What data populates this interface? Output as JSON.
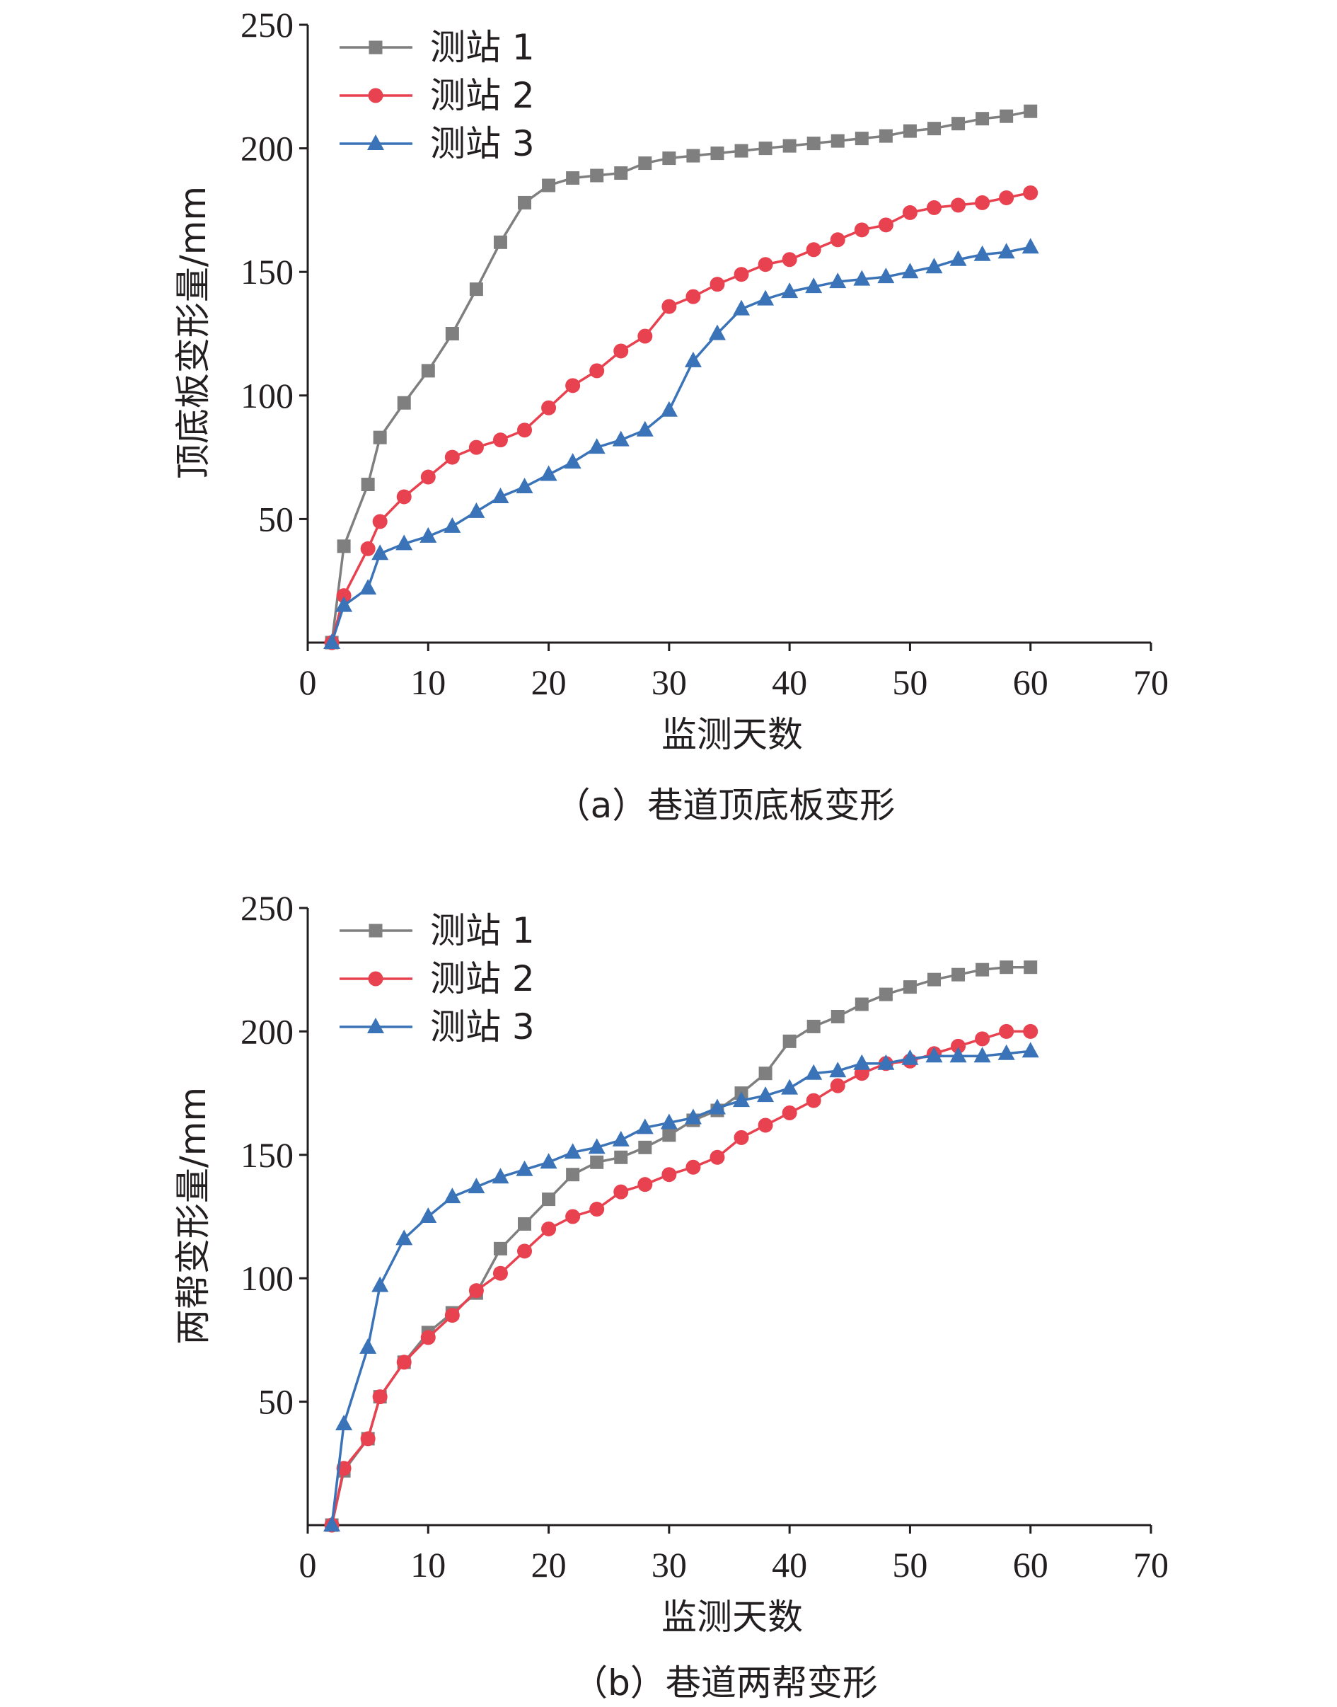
{
  "chart_data": [
    {
      "type": "line",
      "caption": "（a）巷道顶底板变形",
      "xlabel": "监测天数",
      "ylabel": "顶底板变形量/mm",
      "xlim": [
        0,
        70
      ],
      "ylim": [
        0,
        250
      ],
      "x_ticks": [
        "0",
        "10",
        "20",
        "30",
        "40",
        "50",
        "60",
        "70"
      ],
      "y_ticks": [
        "50",
        "100",
        "150",
        "200",
        "250"
      ],
      "legend_position": "top-left",
      "series": [
        {
          "name": "测站 1",
          "color": "#7f7f7f",
          "marker": "square",
          "x": [
            2,
            3,
            5,
            6,
            8,
            10,
            12,
            14,
            16,
            18,
            20,
            22,
            24,
            26,
            28,
            30,
            32,
            34,
            36,
            38,
            40,
            42,
            44,
            46,
            48,
            50,
            52,
            54,
            56,
            58,
            60
          ],
          "y": [
            0,
            39,
            64,
            83,
            97,
            110,
            125,
            143,
            162,
            178,
            185,
            188,
            189,
            190,
            194,
            196,
            197,
            198,
            199,
            200,
            201,
            202,
            203,
            204,
            205,
            207,
            208,
            210,
            212,
            213,
            215
          ]
        },
        {
          "name": "测站 2",
          "color": "#e8414f",
          "marker": "circle",
          "x": [
            2,
            3,
            5,
            6,
            8,
            10,
            12,
            14,
            16,
            18,
            20,
            22,
            24,
            26,
            28,
            30,
            32,
            34,
            36,
            38,
            40,
            42,
            44,
            46,
            48,
            50,
            52,
            54,
            56,
            58,
            60
          ],
          "y": [
            0,
            19,
            38,
            49,
            59,
            67,
            75,
            79,
            82,
            86,
            95,
            104,
            110,
            118,
            124,
            136,
            140,
            145,
            149,
            153,
            155,
            159,
            163,
            167,
            169,
            174,
            176,
            177,
            178,
            180,
            182
          ]
        },
        {
          "name": "测站 3",
          "color": "#3a73b8",
          "marker": "triangle",
          "x": [
            2,
            3,
            5,
            6,
            8,
            10,
            12,
            14,
            16,
            18,
            20,
            22,
            24,
            26,
            28,
            30,
            32,
            34,
            36,
            38,
            40,
            42,
            44,
            46,
            48,
            50,
            52,
            54,
            56,
            58,
            60
          ],
          "y": [
            0,
            15,
            22,
            36,
            40,
            43,
            47,
            53,
            59,
            63,
            68,
            73,
            79,
            82,
            86,
            94,
            114,
            125,
            135,
            139,
            142,
            144,
            146,
            147,
            148,
            150,
            152,
            155,
            157,
            158,
            160
          ]
        }
      ]
    },
    {
      "type": "line",
      "caption": "（b）巷道两帮变形",
      "xlabel": "监测天数",
      "ylabel": "两帮变形量/mm",
      "xlim": [
        0,
        70
      ],
      "ylim": [
        0,
        250
      ],
      "x_ticks": [
        "0",
        "10",
        "20",
        "30",
        "40",
        "50",
        "60",
        "70"
      ],
      "y_ticks": [
        "50",
        "100",
        "150",
        "200",
        "250"
      ],
      "legend_position": "top-left",
      "series": [
        {
          "name": "测站 1",
          "color": "#7f7f7f",
          "marker": "square",
          "x": [
            2,
            3,
            5,
            6,
            8,
            10,
            12,
            14,
            16,
            18,
            20,
            22,
            24,
            26,
            28,
            30,
            32,
            34,
            36,
            38,
            40,
            42,
            44,
            46,
            48,
            50,
            52,
            54,
            56,
            58,
            60
          ],
          "y": [
            0,
            22,
            35,
            52,
            66,
            78,
            86,
            94,
            112,
            122,
            132,
            142,
            147,
            149,
            153,
            158,
            164,
            168,
            175,
            183,
            196,
            202,
            206,
            211,
            215,
            218,
            221,
            223,
            225,
            226,
            226
          ]
        },
        {
          "name": "测站 2",
          "color": "#e8414f",
          "marker": "circle",
          "x": [
            2,
            3,
            5,
            6,
            8,
            10,
            12,
            14,
            16,
            18,
            20,
            22,
            24,
            26,
            28,
            30,
            32,
            34,
            36,
            38,
            40,
            42,
            44,
            46,
            48,
            50,
            52,
            54,
            56,
            58,
            60
          ],
          "y": [
            0,
            23,
            35,
            52,
            66,
            76,
            85,
            95,
            102,
            111,
            120,
            125,
            128,
            135,
            138,
            142,
            145,
            149,
            157,
            162,
            167,
            172,
            178,
            183,
            187,
            188,
            191,
            194,
            197,
            200,
            200
          ]
        },
        {
          "name": "测站 3",
          "color": "#3a73b8",
          "marker": "triangle",
          "x": [
            2,
            3,
            5,
            6,
            8,
            10,
            12,
            14,
            16,
            18,
            20,
            22,
            24,
            26,
            28,
            30,
            32,
            34,
            36,
            38,
            40,
            42,
            44,
            46,
            48,
            50,
            52,
            54,
            56,
            58,
            60
          ],
          "y": [
            0,
            41,
            72,
            97,
            116,
            125,
            133,
            137,
            141,
            144,
            147,
            151,
            153,
            156,
            161,
            163,
            165,
            169,
            172,
            174,
            177,
            183,
            184,
            187,
            187,
            189,
            190,
            190,
            190,
            191,
            192
          ]
        }
      ]
    }
  ]
}
